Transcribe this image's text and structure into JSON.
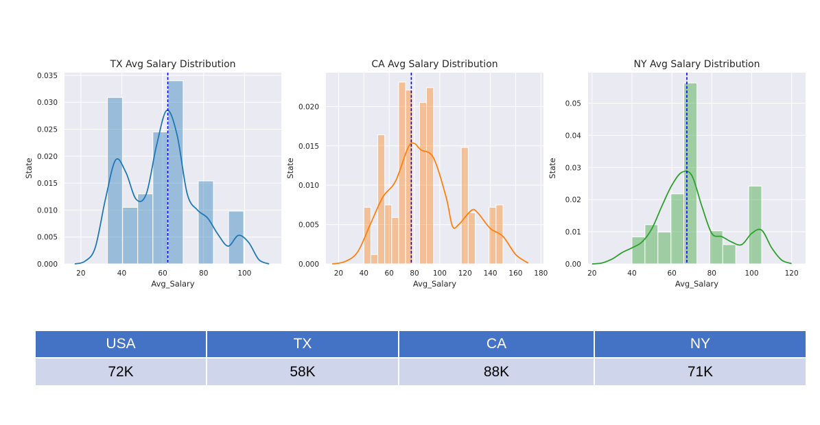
{
  "chart_data": [
    {
      "type": "bar",
      "title": "TX Avg Salary Distribution",
      "xlabel": "Avg_Salary",
      "ylabel": "State",
      "xlim": [
        12,
        118
      ],
      "ylim": [
        0,
        0.0355
      ],
      "xticks": [
        "20",
        "40",
        "60",
        "80",
        "100"
      ],
      "yticks": [
        "0.000",
        "0.005",
        "0.010",
        "0.015",
        "0.020",
        "0.025",
        "0.030",
        "0.035"
      ],
      "color": "#1f77b4",
      "mean_line": 62.5,
      "histogram": {
        "bins": [
          [
            33,
            40.4
          ],
          [
            40.4,
            47.8
          ],
          [
            47.8,
            55.2
          ],
          [
            55.2,
            62.6
          ],
          [
            62.6,
            70
          ],
          [
            70,
            77.4
          ],
          [
            77.4,
            84.8
          ],
          [
            84.8,
            92.2
          ],
          [
            92.2,
            99.6
          ]
        ],
        "values": [
          0.0309,
          0.0105,
          0.013,
          0.0245,
          0.034,
          0,
          0.0154,
          0,
          0.0098
        ]
      },
      "kde": {
        "x": [
          17,
          22,
          27,
          32,
          37,
          42,
          47,
          52,
          57,
          62,
          67,
          72,
          77,
          82,
          87,
          92,
          97,
          102,
          107,
          112
        ],
        "y": [
          0,
          0.0005,
          0.003,
          0.012,
          0.0193,
          0.017,
          0.012,
          0.013,
          0.022,
          0.0285,
          0.024,
          0.013,
          0.01,
          0.0085,
          0.0055,
          0.0033,
          0.0053,
          0.004,
          0.0008,
          0
        ]
      }
    },
    {
      "type": "bar",
      "title": "CA Avg Salary Distribution",
      "xlabel": "Avg_Salary",
      "ylabel": "State",
      "xlim": [
        10,
        182
      ],
      "ylim": [
        0,
        0.0243
      ],
      "xticks": [
        "20",
        "40",
        "60",
        "80",
        "100",
        "120",
        "140",
        "160",
        "180"
      ],
      "yticks": [
        "0.000",
        "0.005",
        "0.010",
        "0.015",
        "0.020"
      ],
      "color": "#ff7f0e",
      "mean_line": 77.5,
      "histogram": {
        "bins": [
          [
            40,
            45.5
          ],
          [
            45.5,
            51
          ],
          [
            51,
            56.5
          ],
          [
            56.5,
            62
          ],
          [
            62,
            67.5
          ],
          [
            67.5,
            73
          ],
          [
            73,
            78.5
          ],
          [
            78.5,
            84
          ],
          [
            84,
            89.5
          ],
          [
            89.5,
            95
          ],
          [
            95,
            100.5
          ],
          [
            100.5,
            106
          ],
          [
            106,
            111.5
          ],
          [
            111.5,
            117
          ],
          [
            117,
            122.5
          ],
          [
            122.5,
            128
          ],
          [
            128,
            133.5
          ],
          [
            133.5,
            139
          ],
          [
            139,
            144.5
          ],
          [
            144.5,
            150
          ]
        ],
        "values": [
          0.0072,
          0.0012,
          0.0164,
          0.0075,
          0.0059,
          0.0231,
          0.0221,
          0,
          0.0205,
          0.0224,
          0,
          0,
          0,
          0,
          0.0148,
          0.0065,
          0,
          0,
          0.0072,
          0.0075
        ]
      },
      "kde": {
        "x": [
          15,
          25,
          35,
          45,
          55,
          65,
          75,
          80,
          85,
          95,
          105,
          110,
          115,
          125,
          130,
          140,
          150,
          160,
          170
        ],
        "y": [
          0,
          0.0003,
          0.0015,
          0.005,
          0.0085,
          0.0105,
          0.0148,
          0.0153,
          0.0145,
          0.0135,
          0.0085,
          0.0048,
          0.005,
          0.0068,
          0.0065,
          0.0045,
          0.0035,
          0.0012,
          0.0001
        ]
      }
    },
    {
      "type": "bar",
      "title": "NY Avg Salary Distribution",
      "xlabel": "Avg_Salary",
      "ylabel": "State",
      "xlim": [
        18,
        127
      ],
      "ylim": [
        0,
        0.0595
      ],
      "xticks": [
        "20",
        "40",
        "60",
        "80",
        "100",
        "120"
      ],
      "yticks": [
        "0.00",
        "0.01",
        "0.02",
        "0.03",
        "0.04",
        "0.05"
      ],
      "color": "#2ca02c",
      "mean_line": 67.5,
      "histogram": {
        "bins": [
          [
            40,
            46.5
          ],
          [
            46.5,
            53
          ],
          [
            53,
            59.5
          ],
          [
            59.5,
            66
          ],
          [
            66,
            72.5
          ],
          [
            72.5,
            79
          ],
          [
            79,
            85.5
          ],
          [
            85.5,
            92
          ],
          [
            92,
            98.5
          ],
          [
            98.5,
            105
          ]
        ],
        "values": [
          0.0084,
          0.0122,
          0.0099,
          0.0218,
          0.0563,
          0,
          0.0103,
          0.006,
          0,
          0.0242
        ]
      },
      "kde": {
        "x": [
          20,
          25,
          30,
          35,
          40,
          45,
          50,
          55,
          60,
          65,
          70,
          75,
          80,
          85,
          90,
          95,
          100,
          105,
          110,
          115,
          120
        ],
        "y": [
          0,
          0.0003,
          0.0015,
          0.0035,
          0.005,
          0.0068,
          0.011,
          0.018,
          0.0245,
          0.0285,
          0.0275,
          0.018,
          0.0095,
          0.0085,
          0.0068,
          0.006,
          0.0095,
          0.0105,
          0.005,
          0.0012,
          0.0001
        ]
      }
    }
  ],
  "summary_table": {
    "headers": [
      "USA",
      "TX",
      "CA",
      "NY"
    ],
    "values": [
      "72K",
      "58K",
      "88K",
      "71K"
    ]
  },
  "colors": {
    "plot_background": "#eaeaf2",
    "mean_line": "#0000ff",
    "table_header": "#4472c4",
    "table_row": "#cfd5ea"
  }
}
